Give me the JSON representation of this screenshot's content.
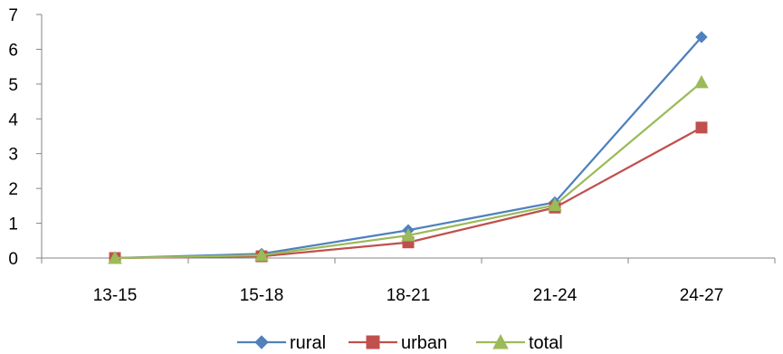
{
  "chart_data": {
    "type": "line",
    "title": "",
    "xlabel": "",
    "ylabel": "",
    "categories": [
      "13-15",
      "15-18",
      "18-21",
      "21-24",
      "24-27"
    ],
    "ylim": [
      0,
      7
    ],
    "yticks": [
      0,
      1,
      2,
      3,
      4,
      5,
      6,
      7
    ],
    "grid": false,
    "legend_position": "bottom",
    "series": [
      {
        "name": "rural",
        "values": [
          0.0,
          0.12,
          0.8,
          1.6,
          6.35
        ],
        "color": "#4F81BD",
        "marker": "diamond"
      },
      {
        "name": "urban",
        "values": [
          0.0,
          0.05,
          0.45,
          1.45,
          3.75
        ],
        "color": "#C0504D",
        "marker": "square"
      },
      {
        "name": "total",
        "values": [
          0.0,
          0.08,
          0.65,
          1.52,
          5.05
        ],
        "color": "#9BBB59",
        "marker": "triangle"
      }
    ]
  }
}
